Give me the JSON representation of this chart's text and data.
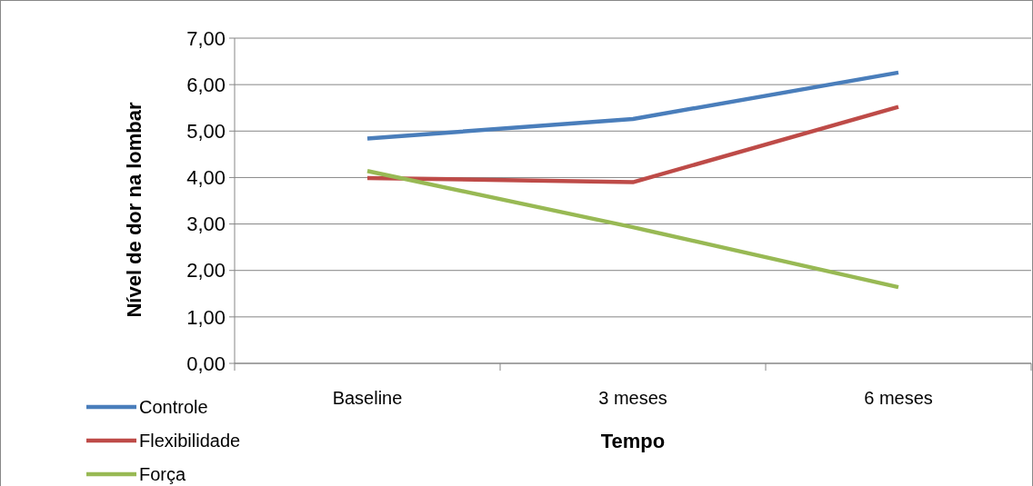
{
  "chart_data": {
    "type": "line",
    "xlabel": "Tempo",
    "ylabel": "Nível de dor na lombar",
    "categories": [
      "Baseline",
      "3 meses",
      "6 meses"
    ],
    "series": [
      {
        "name": "Controle",
        "color": "#4a7ebb",
        "values": [
          4.84,
          5.26,
          6.26
        ]
      },
      {
        "name": "Flexibilidade",
        "color": "#be4b48",
        "values": [
          3.99,
          3.9,
          5.52
        ]
      },
      {
        "name": "Força",
        "color": "#98b954",
        "values": [
          4.14,
          2.93,
          1.64
        ]
      }
    ],
    "ylim": [
      0,
      7
    ],
    "yticks": [
      {
        "value": 0,
        "label": "0,00"
      },
      {
        "value": 1,
        "label": "1,00"
      },
      {
        "value": 2,
        "label": "2,00"
      },
      {
        "value": 3,
        "label": "3,00"
      },
      {
        "value": 4,
        "label": "4,00"
      },
      {
        "value": 5,
        "label": "5,00"
      },
      {
        "value": 6,
        "label": "6,00"
      },
      {
        "value": 7,
        "label": "7,00"
      }
    ],
    "grid": "y",
    "legend": "bottom left",
    "marker": "none",
    "line_style": "solid"
  }
}
